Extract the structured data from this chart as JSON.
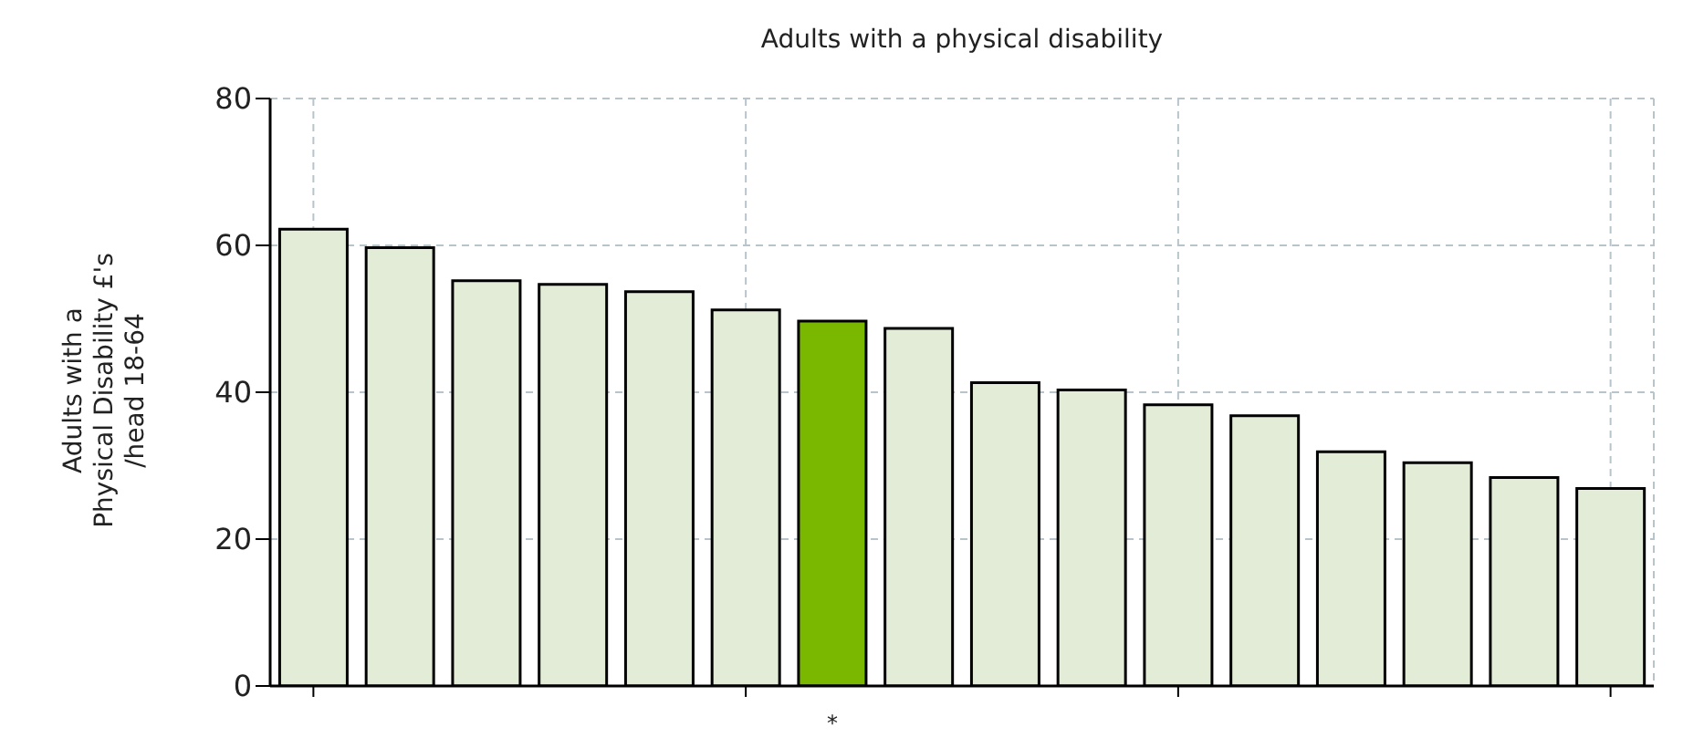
{
  "chart_data": {
    "type": "bar",
    "title": "Adults with a physical disability",
    "ylabel": "Adults with a\nPhysical Disability £'s\n/head 18-64",
    "categories": [
      null,
      null,
      null,
      null,
      null,
      null,
      "*",
      null,
      null,
      null,
      null,
      null,
      null,
      null,
      null,
      null
    ],
    "values": [
      62.2,
      59.7,
      55.2,
      54.7,
      53.7,
      51.2,
      49.7,
      48.7,
      41.3,
      40.3,
      38.3,
      36.8,
      31.9,
      30.4,
      28.4,
      26.9
    ],
    "colors": [
      "#e2ecd6",
      "#e2ecd6",
      "#e2ecd6",
      "#e2ecd6",
      "#e2ecd6",
      "#e2ecd6",
      "#7ab800",
      "#e2ecd6",
      "#e2ecd6",
      "#e2ecd6",
      "#e2ecd6",
      "#e2ecd6",
      "#e2ecd6",
      "#e2ecd6",
      "#e2ecd6",
      "#e2ecd6"
    ],
    "ylim": [
      0,
      80
    ],
    "yticks": [
      0,
      20,
      40,
      60,
      80
    ],
    "grid": true
  }
}
